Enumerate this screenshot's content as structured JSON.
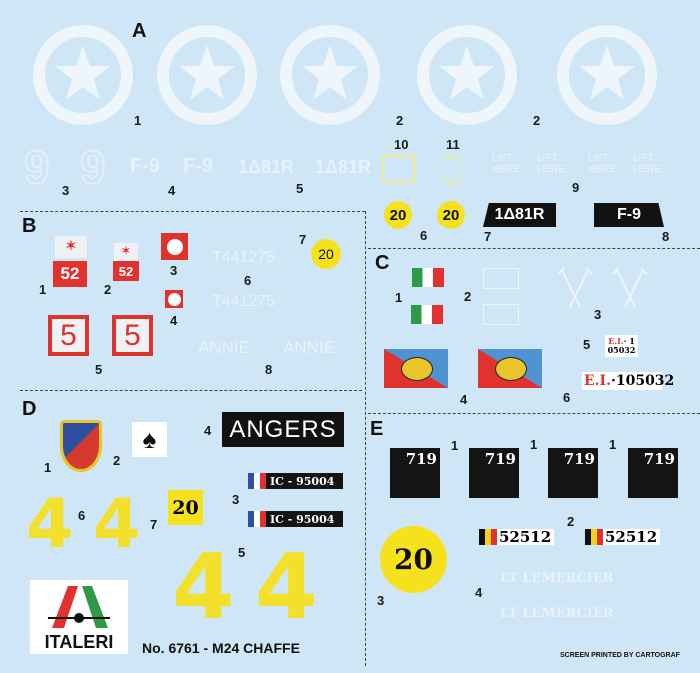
{
  "sections": {
    "a": "A",
    "b": "B",
    "c": "C",
    "d": "D",
    "e": "E"
  },
  "a": {
    "star_numbers": [
      "1",
      "2",
      "2"
    ],
    "numbers": [
      "3",
      "4",
      "5",
      "6",
      "7",
      "8",
      "9",
      "10",
      "11"
    ],
    "nine": "9",
    "f9": "F-9",
    "serial": "1Δ81R",
    "lift_here": "LIFT HERE",
    "circle_20": "20",
    "tag_serial": "1Δ81R",
    "tag_f9": "F-9"
  },
  "b": {
    "numbers": [
      "1",
      "2",
      "3",
      "4",
      "5",
      "6",
      "7",
      "8"
    ],
    "badge_52": "52",
    "square_5": "5",
    "reg": "T441275",
    "annie": "ANNIE",
    "circle_20": "20"
  },
  "c": {
    "numbers": [
      "1",
      "2",
      "3",
      "4",
      "5",
      "6"
    ],
    "plate_small_line1_red": "E.I.",
    "plate_small_line1": "· 1",
    "plate_small_line2": "05032",
    "plate_large_red": "E.I.",
    "plate_large": "·105032"
  },
  "d": {
    "numbers": [
      "1",
      "2",
      "3",
      "4",
      "5",
      "6",
      "7"
    ],
    "angers": "ANGERS",
    "plate": "IC - 95004",
    "box_20": "20",
    "four": "4",
    "brand": "ITALERI",
    "kit_title": "No. 6761 - M24 CHAFFE"
  },
  "e": {
    "numbers": [
      "1",
      "2",
      "3",
      "4"
    ],
    "box_719": "719",
    "plate": "52512",
    "circle_20": "20",
    "name": "LT LEMERCIER"
  },
  "footer": "SCREEN PRINTED BY CARTOGRAF",
  "colors": {
    "background": "#cfe6f6",
    "yellow": "#f6e21c",
    "red": "#e0322f",
    "black": "#141414",
    "italy_green": "#2e9a47",
    "blue_flag": "#4f93d3"
  }
}
